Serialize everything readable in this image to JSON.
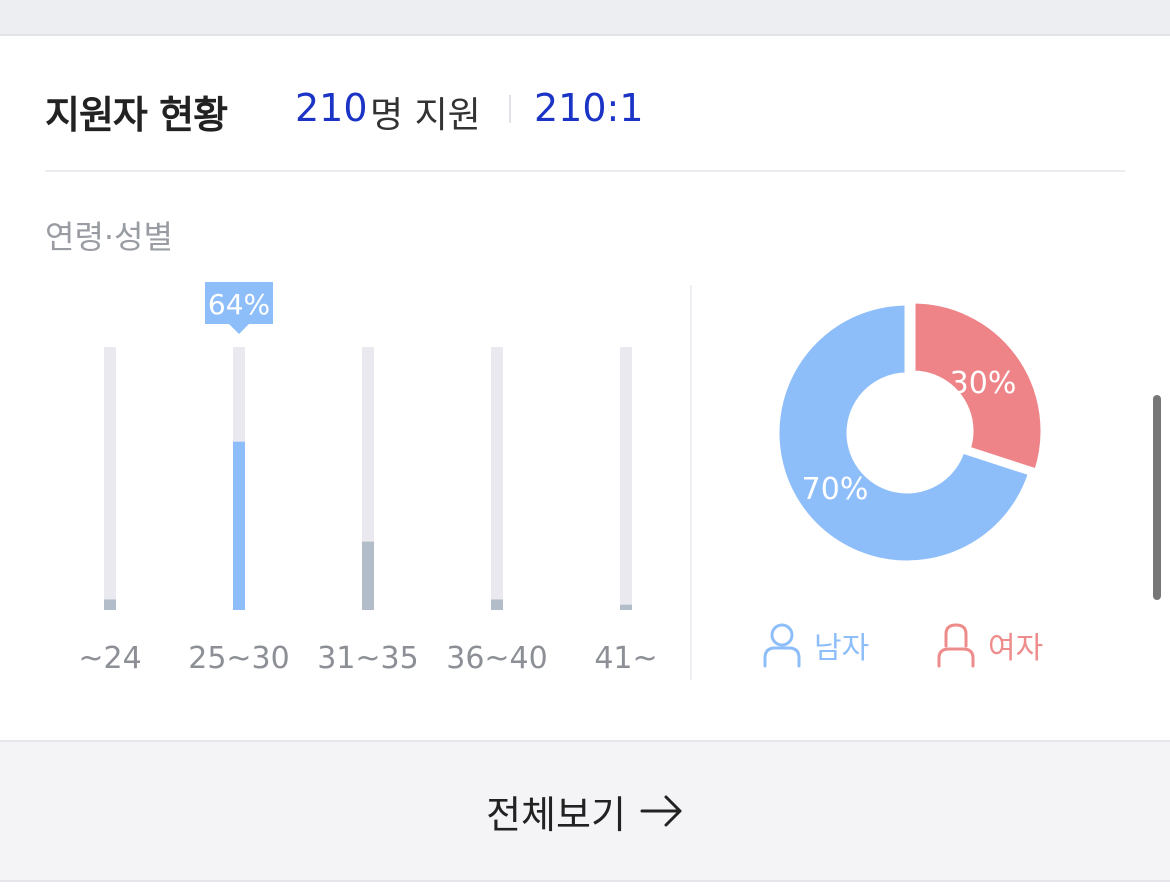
{
  "header": {
    "title": "지원자 현황",
    "applicant_count": "210",
    "applicant_unit": "명 지원",
    "competition_ratio": "210:1"
  },
  "section_label": "연령·성별",
  "chart_data": [
    {
      "type": "bar",
      "categories": [
        "~24",
        "25~30",
        "31~35",
        "36~40",
        "41~"
      ],
      "values": [
        4,
        64,
        26,
        4,
        2
      ],
      "ylim": [
        0,
        100
      ],
      "highlight": {
        "category": "25~30",
        "label": "64%"
      },
      "colors": {
        "highlight": "#8ebefa",
        "normal": "#b3bdca",
        "track": "#e9e9ef"
      }
    },
    {
      "type": "pie",
      "style": "donut",
      "labels": [
        "남자",
        "여자"
      ],
      "values": [
        70,
        30
      ],
      "value_labels": [
        "70%",
        "30%"
      ],
      "colors": [
        "#8ebefa",
        "#ee8488"
      ]
    }
  ],
  "legend": {
    "male": {
      "label": "남자",
      "icon": "male-person-icon",
      "color": "#8ebefa"
    },
    "female": {
      "label": "여자",
      "icon": "female-person-icon",
      "color": "#ee8c8c"
    }
  },
  "footer": {
    "view_all_label": "전체보기",
    "arrow_icon": "arrow-right-icon"
  }
}
